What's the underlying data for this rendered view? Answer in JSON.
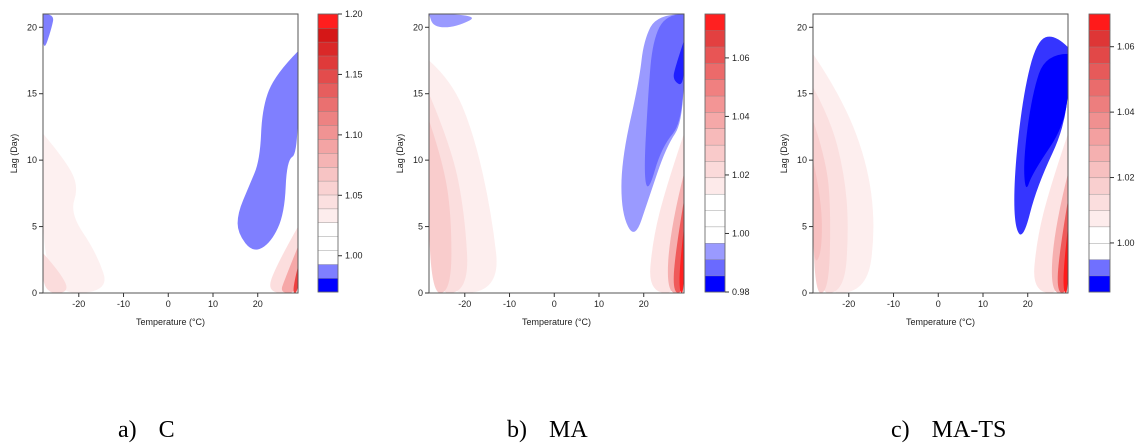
{
  "colors": {
    "red_max": "#ff1e1e",
    "pink_light": "#fde6e6",
    "blue_light": "#b3b3ff",
    "blue_mid": "#7f7fff",
    "blue_dark": "#0000ff"
  },
  "chart_data": [
    {
      "type": "heatmap",
      "caption_letter": "a)",
      "caption_name": "C",
      "xlabel": "Temperature (°C)",
      "ylabel": "Lag (Day)",
      "xlim": [
        -28,
        29
      ],
      "ylim": [
        0,
        21
      ],
      "x_ticks": [
        "-20",
        "-10",
        "0",
        "10",
        "20"
      ],
      "y_ticks": [
        "0",
        "5",
        "10",
        "15",
        "20"
      ],
      "colorbar_range": [
        0.97,
        1.2
      ],
      "colorbar_ticks": [
        "1.00",
        "1.05",
        "1.10",
        "1.15",
        "1.20"
      ],
      "colorbar_levels": [
        "#0000ff",
        "#7f7fff",
        "#ffffff",
        "#ffffff",
        "#ffffff",
        "#fdeded",
        "#fbe0e0",
        "#f9d2d2",
        "#f7c4c4",
        "#f5b4b4",
        "#f3a4a4",
        "#f09393",
        "#ed8282",
        "#ea7070",
        "#e65e5e",
        "#e34c4c",
        "#df3a3a",
        "#da2828",
        "#d51717",
        "#ff1e1e"
      ],
      "regions": [
        {
          "name": "heat-effect",
          "color": "#7f7fff",
          "points": [
            [
              29,
              18.2
            ],
            [
              24,
              16.5
            ],
            [
              21,
              14
            ],
            [
              20.5,
              10
            ],
            [
              18,
              8
            ],
            [
              15.5,
              6
            ],
            [
              15.5,
              4.5
            ],
            [
              19,
              3
            ],
            [
              23,
              3.8
            ],
            [
              26,
              6
            ],
            [
              26.5,
              10
            ],
            [
              29,
              10.5
            ]
          ]
        },
        {
          "name": "top-left-low",
          "color": "#7f7fff",
          "points": [
            [
              -28,
              21
            ],
            [
              -25.5,
              21
            ],
            [
              -26,
              20
            ],
            [
              -28,
              18
            ]
          ]
        },
        {
          "name": "cold-pink-1",
          "color": "#fdf0f0",
          "points": [
            [
              -28,
              12
            ],
            [
              -23,
              10
            ],
            [
              -20,
              8
            ],
            [
              -22,
              6
            ],
            [
              -16,
              3
            ],
            [
              -13,
              0
            ],
            [
              -28,
              0
            ]
          ]
        },
        {
          "name": "cold-pink-2",
          "color": "#fbdcdc",
          "points": [
            [
              -28,
              3
            ],
            [
              -24,
              1.5
            ],
            [
              -22,
              0
            ],
            [
              -28,
              0
            ]
          ]
        },
        {
          "name": "hot-pink-1",
          "color": "#fcdede",
          "points": [
            [
              29,
              5
            ],
            [
              24,
              2
            ],
            [
              22,
              0
            ],
            [
              29,
              0
            ]
          ]
        },
        {
          "name": "hot-pink-2",
          "color": "#f6a8a8",
          "points": [
            [
              29,
              3.5
            ],
            [
              26,
              1
            ],
            [
              25,
              0
            ],
            [
              29,
              0
            ]
          ]
        },
        {
          "name": "hot-red",
          "color": "#ee4040",
          "points": [
            [
              29,
              2
            ],
            [
              27.5,
              0
            ],
            [
              29,
              0
            ]
          ]
        }
      ]
    },
    {
      "type": "heatmap",
      "caption_letter": "b)",
      "caption_name": "MA",
      "xlabel": "Temperature (°C)",
      "ylabel": "Lag (Day)",
      "xlim": [
        -28,
        29
      ],
      "ylim": [
        0,
        21
      ],
      "x_ticks": [
        "-20",
        "-10",
        "0",
        "10",
        "20"
      ],
      "y_ticks": [
        "0",
        "5",
        "10",
        "15",
        "20"
      ],
      "colorbar_range": [
        0.98,
        1.075
      ],
      "colorbar_ticks": [
        "0.98",
        "1.00",
        "1.02",
        "1.04",
        "1.06"
      ],
      "colorbar_levels": [
        "#0000ff",
        "#6a6aff",
        "#9a9aff",
        "#ffffff",
        "#ffffff",
        "#ffffff",
        "#fdeaea",
        "#fbdada",
        "#f9caca",
        "#f7baba",
        "#f5a8a8",
        "#f39595",
        "#f08080",
        "#ec6a6a",
        "#e85555",
        "#e34040",
        "#ff2020"
      ],
      "regions": [
        {
          "name": "heat-effect-light",
          "color": "#9a9aff",
          "points": [
            [
              29,
              21
            ],
            [
              23,
              21
            ],
            [
              20,
              19
            ],
            [
              19,
              16
            ],
            [
              15,
              10
            ],
            [
              15,
              6
            ],
            [
              18,
              4
            ],
            [
              21,
              7
            ],
            [
              25,
              11
            ],
            [
              29,
              13
            ]
          ]
        },
        {
          "name": "heat-effect-mid",
          "color": "#6a6aff",
          "points": [
            [
              29,
              21
            ],
            [
              25,
              21
            ],
            [
              22,
              19
            ],
            [
              21,
              15
            ],
            [
              20,
              9
            ],
            [
              21,
              7.5
            ],
            [
              24,
              11
            ],
            [
              29,
              13
            ]
          ]
        },
        {
          "name": "heat-effect-dark",
          "color": "#1f1fff",
          "points": [
            [
              29,
              19
            ],
            [
              27,
              17
            ],
            [
              26.5,
              16
            ],
            [
              29,
              15.5
            ]
          ]
        },
        {
          "name": "top-left-low",
          "color": "#9a9aff",
          "points": [
            [
              -28,
              21
            ],
            [
              -16,
              21
            ],
            [
              -22,
              20
            ],
            [
              -27,
              20
            ]
          ]
        },
        {
          "name": "cold-pink-1",
          "color": "#fdeeee",
          "points": [
            [
              -28,
              17.5
            ],
            [
              -23,
              16
            ],
            [
              -18,
              12
            ],
            [
              -14,
              6
            ],
            [
              -12,
              0
            ],
            [
              -28,
              0
            ]
          ]
        },
        {
          "name": "cold-pink-2",
          "color": "#fbdede",
          "points": [
            [
              -28,
              15
            ],
            [
              -23,
              11
            ],
            [
              -20,
              6
            ],
            [
              -19,
              0
            ],
            [
              -28,
              0
            ]
          ]
        },
        {
          "name": "cold-pink-3",
          "color": "#f9cccc",
          "points": [
            [
              -28,
              13
            ],
            [
              -25,
              10
            ],
            [
              -23,
              6
            ],
            [
              -23,
              0
            ],
            [
              -28,
              0
            ]
          ]
        },
        {
          "name": "hot-pink-1",
          "color": "#fde4e4",
          "points": [
            [
              29,
              12
            ],
            [
              25,
              8
            ],
            [
              22,
              4
            ],
            [
              21,
              0
            ],
            [
              29,
              0
            ]
          ]
        },
        {
          "name": "hot-pink-2",
          "color": "#f6b0b0",
          "points": [
            [
              29,
              9
            ],
            [
              26,
              5
            ],
            [
              25,
              0
            ],
            [
              29,
              0
            ]
          ]
        },
        {
          "name": "hot-red-1",
          "color": "#ef5a5a",
          "points": [
            [
              29,
              7
            ],
            [
              27,
              3
            ],
            [
              26.5,
              0
            ],
            [
              29,
              0
            ]
          ]
        },
        {
          "name": "hot-red-2",
          "color": "#ff2020",
          "points": [
            [
              29,
              5
            ],
            [
              28,
              2
            ],
            [
              28,
              0
            ],
            [
              29,
              0
            ]
          ]
        }
      ]
    },
    {
      "type": "heatmap",
      "caption_letter": "c)",
      "caption_name": "MA-TS",
      "xlabel": "Temperature (°C)",
      "ylabel": "Lag (Day)",
      "xlim": [
        -28,
        29
      ],
      "ylim": [
        0,
        21
      ],
      "x_ticks": [
        "-20",
        "-10",
        "0",
        "10",
        "20"
      ],
      "y_ticks": [
        "0",
        "5",
        "10",
        "15",
        "20"
      ],
      "colorbar_range": [
        0.985,
        1.07
      ],
      "colorbar_ticks": [
        "1.00",
        "1.02",
        "1.04",
        "1.06"
      ],
      "colorbar_levels": [
        "#0000ff",
        "#7070ff",
        "#ffffff",
        "#ffffff",
        "#fdecec",
        "#fbdede",
        "#f9cfcf",
        "#f7c0c0",
        "#f5b0b0",
        "#f3a0a0",
        "#f09090",
        "#ed7e7e",
        "#ea6c6c",
        "#e65a5a",
        "#e24848",
        "#de3636",
        "#ff1a1a"
      ],
      "regions": [
        {
          "name": "heat-effect-light",
          "color": "#3535ff",
          "points": [
            [
              29,
              18.5
            ],
            [
              26,
              19.5
            ],
            [
              22,
              19
            ],
            [
              19,
              15
            ],
            [
              17,
              9
            ],
            [
              17,
              5
            ],
            [
              19,
              4
            ],
            [
              22,
              8
            ],
            [
              29,
              13
            ]
          ]
        },
        {
          "name": "heat-effect-dark",
          "color": "#0000ff",
          "points": [
            [
              29,
              18
            ],
            [
              24,
              18
            ],
            [
              21,
              15
            ],
            [
              19,
              10
            ],
            [
              19.5,
              7.5
            ],
            [
              21,
              9
            ],
            [
              29,
              13
            ]
          ]
        },
        {
          "name": "cold-pink-1",
          "color": "#fdeeee",
          "points": [
            [
              -28,
              18
            ],
            [
              -22,
              15
            ],
            [
              -16,
              10
            ],
            [
              -14,
              5
            ],
            [
              -16,
              0
            ],
            [
              -28,
              0
            ]
          ]
        },
        {
          "name": "cold-pink-2",
          "color": "#fbe0e0",
          "points": [
            [
              -28,
              15.5
            ],
            [
              -24,
              13
            ],
            [
              -21,
              9
            ],
            [
              -20,
              5
            ],
            [
              -21,
              0
            ],
            [
              -28,
              0
            ]
          ]
        },
        {
          "name": "cold-pink-3",
          "color": "#f9d0d0",
          "points": [
            [
              -28,
              13
            ],
            [
              -25,
              10
            ],
            [
              -24,
              6
            ],
            [
              -24.5,
              0
            ],
            [
              -28,
              0
            ]
          ]
        },
        {
          "name": "cold-pink-4",
          "color": "#f7c0c0",
          "points": [
            [
              -28,
              10
            ],
            [
              -26,
              7
            ],
            [
              -26,
              3
            ],
            [
              -28,
              2
            ]
          ]
        },
        {
          "name": "hot-pink-1",
          "color": "#fde4e4",
          "points": [
            [
              29,
              12
            ],
            [
              25,
              8
            ],
            [
              22,
              4
            ],
            [
              21,
              0
            ],
            [
              29,
              0
            ]
          ]
        },
        {
          "name": "hot-pink-2",
          "color": "#f6b0b0",
          "points": [
            [
              29,
              9
            ],
            [
              26,
              5
            ],
            [
              25,
              0
            ],
            [
              29,
              0
            ]
          ]
        },
        {
          "name": "hot-red-1",
          "color": "#ef5a5a",
          "points": [
            [
              29,
              7
            ],
            [
              27,
              3
            ],
            [
              26.5,
              0
            ],
            [
              29,
              0
            ]
          ]
        },
        {
          "name": "hot-red-2",
          "color": "#ff1a1a",
          "points": [
            [
              29,
              5
            ],
            [
              28,
              2
            ],
            [
              28,
              0
            ],
            [
              29,
              0
            ]
          ]
        }
      ]
    }
  ]
}
